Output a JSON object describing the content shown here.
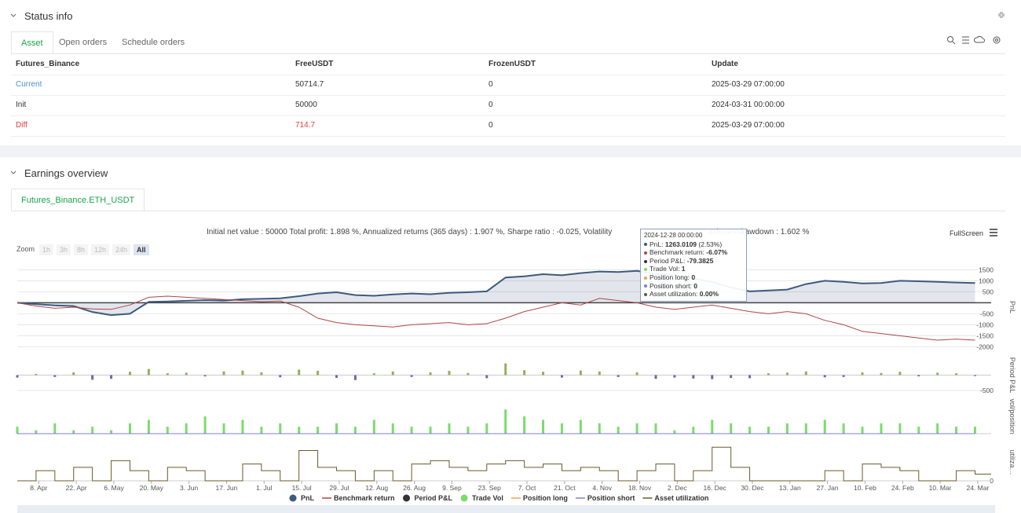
{
  "status": {
    "title": "Status info",
    "tabs": [
      "Asset",
      "Open orders",
      "Schedule orders"
    ],
    "table": {
      "columns": [
        "Futures_Binance",
        "FreeUSDT",
        "FrozenUSDT",
        "Update"
      ],
      "rows": [
        [
          "Current",
          "50714.7",
          "0",
          "2025-03-29 07:00:00"
        ],
        [
          "Init",
          "50000",
          "0",
          "2024-03-31 00:00:00"
        ],
        [
          "Diff",
          "714.7",
          "0",
          "2025-03-29 07:00:00"
        ]
      ]
    }
  },
  "earnings": {
    "title": "Earnings overview",
    "tab": "Futures_Binance.ETH_USDT",
    "summary_left": "Initial net value : 50000 Total profit: 1.898 %, Annualized returns (365 days) : 1.907 %, Sharpe ratio : -0.025, Volatility",
    "summary_right": "aximum drawdown : 1.602 %",
    "fullscreen": "FullScreen",
    "zoom_label": "Zoom",
    "zoom_buttons": [
      "1h",
      "3h",
      "8h",
      "12h",
      "24h",
      "All"
    ],
    "tooltip": {
      "date": "2024-12-28 00:00:00",
      "items": [
        {
          "label": "PnL: ",
          "value": "1263.0109",
          "extra": " (2.53%)"
        },
        {
          "label": "Benchmark return: ",
          "value": "-6.07%"
        },
        {
          "label": "Period P&L: ",
          "value": "-79.3825"
        },
        {
          "label": "Trade Vol: ",
          "value": "1"
        },
        {
          "label": "Position long: ",
          "value": "0"
        },
        {
          "label": "Position short: ",
          "value": "0"
        },
        {
          "label": "Asset utilization: ",
          "value": "0.00%"
        }
      ]
    }
  },
  "chart_data": {
    "type": "line",
    "x": [
      0,
      7,
      14,
      21,
      28,
      35,
      42,
      49,
      56,
      63,
      70,
      77,
      84,
      91,
      98,
      105,
      112,
      119,
      126,
      133,
      140,
      147,
      154,
      161,
      168,
      175,
      182,
      189,
      196,
      203,
      210,
      217,
      224,
      231,
      238,
      245,
      252,
      259,
      266,
      273,
      280,
      287,
      294,
      301,
      308,
      315,
      322,
      329,
      336,
      343,
      350,
      357
    ],
    "xlim": [
      0,
      363
    ],
    "xticks": [
      {
        "value": 8,
        "label": "8. Apr"
      },
      {
        "value": 22,
        "label": "22. Apr"
      },
      {
        "value": 36,
        "label": "6. May"
      },
      {
        "value": 50,
        "label": "20. May"
      },
      {
        "value": 64,
        "label": "3. Jun"
      },
      {
        "value": 78,
        "label": "17. Jun"
      },
      {
        "value": 92,
        "label": "1. Jul"
      },
      {
        "value": 106,
        "label": "15. Jul"
      },
      {
        "value": 120,
        "label": "29. Jul"
      },
      {
        "value": 134,
        "label": "12. Aug"
      },
      {
        "value": 148,
        "label": "26. Aug"
      },
      {
        "value": 162,
        "label": "9. Sep"
      },
      {
        "value": 176,
        "label": "23. Sep"
      },
      {
        "value": 190,
        "label": "7. Oct"
      },
      {
        "value": 204,
        "label": "21. Oct"
      },
      {
        "value": 218,
        "label": "4. Nov"
      },
      {
        "value": 232,
        "label": "18. Nov"
      },
      {
        "value": 246,
        "label": "2. Dec"
      },
      {
        "value": 260,
        "label": "16. Dec"
      },
      {
        "value": 274,
        "label": "30. Dec"
      },
      {
        "value": 288,
        "label": "13. Jan"
      },
      {
        "value": 302,
        "label": "27. Jan"
      },
      {
        "value": 316,
        "label": "10. Feb"
      },
      {
        "value": 330,
        "label": "24. Feb"
      },
      {
        "value": 344,
        "label": "10. Mar"
      },
      {
        "value": 358,
        "label": "24. Mar"
      }
    ],
    "panels": [
      {
        "name": "PnL",
        "ylim": [
          -2200,
          1800
        ],
        "yticks": [
          1500,
          1000,
          500,
          -500,
          -1000,
          -1500,
          -2000
        ]
      },
      {
        "name": "Period P&L",
        "ylim": [
          -700,
          700
        ],
        "yticks": [
          -500
        ]
      },
      {
        "name": "vol/position",
        "ylim": [
          0,
          10
        ]
      },
      {
        "name": "utiliza…",
        "ylim": [
          0,
          1.1
        ],
        "yticks": [
          0
        ]
      }
    ],
    "series": [
      {
        "name": "PnL",
        "type": "area",
        "panel": 0,
        "color": "#3d5a80",
        "values": [
          0,
          -60,
          -120,
          -150,
          -420,
          -560,
          -500,
          40,
          60,
          90,
          120,
          100,
          160,
          180,
          200,
          300,
          420,
          480,
          350,
          320,
          380,
          420,
          390,
          450,
          480,
          520,
          1150,
          1200,
          1300,
          1250,
          1350,
          1420,
          1400,
          1450,
          1300,
          1263,
          1100,
          950,
          700,
          520,
          560,
          600,
          850,
          1000,
          950,
          880,
          900,
          1000,
          980,
          950,
          920,
          900
        ]
      },
      {
        "name": "Benchmark return",
        "type": "line",
        "panel": 0,
        "color": "#b04545",
        "values": [
          0,
          -150,
          -250,
          -200,
          -280,
          -300,
          -100,
          250,
          300,
          250,
          200,
          150,
          100,
          50,
          80,
          -200,
          -700,
          -900,
          -1000,
          -1050,
          -1100,
          -1000,
          -950,
          -900,
          -1000,
          -950,
          -700,
          -400,
          -200,
          0,
          -100,
          200,
          100,
          0,
          -200,
          -300,
          -200,
          -100,
          -250,
          -400,
          -500,
          -400,
          -500,
          -800,
          -1000,
          -1300,
          -1400,
          -1500,
          -1600,
          -1700,
          -1650,
          -1700
        ]
      },
      {
        "name": "Period P&L",
        "type": "bar",
        "panel": 1,
        "color": "#333333",
        "values": [
          -80,
          40,
          -60,
          90,
          -150,
          -120,
          110,
          200,
          60,
          80,
          -40,
          120,
          150,
          90,
          -70,
          180,
          140,
          -90,
          -160,
          60,
          120,
          -60,
          90,
          140,
          70,
          -100,
          380,
          160,
          110,
          -80,
          150,
          120,
          -60,
          90,
          -120,
          -79.3825,
          -110,
          -130,
          -90,
          -100,
          60,
          80,
          120,
          -70,
          -60,
          90,
          70,
          110,
          -40,
          80,
          60,
          -30
        ]
      },
      {
        "name": "Trade Vol",
        "type": "bar",
        "panel": 2,
        "color": "#7bdc6b",
        "values": [
          2,
          1,
          3,
          1,
          2,
          1,
          3,
          4,
          2,
          3,
          5,
          3,
          4,
          2,
          3,
          2,
          2,
          3,
          2,
          4,
          3,
          2,
          2,
          3,
          2,
          3,
          7,
          5,
          4,
          3,
          4,
          3,
          2,
          3,
          3,
          1,
          2,
          4,
          3,
          2,
          2,
          3,
          3,
          4,
          3,
          2,
          3,
          3,
          2,
          3,
          2,
          2
        ]
      },
      {
        "name": "Position long",
        "type": "line",
        "panel": 2,
        "color": "#f2a050",
        "values": [
          0,
          0,
          0,
          0,
          0,
          0,
          0,
          0,
          0,
          0,
          0,
          0,
          0,
          0,
          0,
          0,
          0,
          0,
          0,
          0,
          0,
          0,
          0,
          0,
          0,
          0,
          0,
          0,
          0,
          0,
          0,
          0,
          0,
          0,
          0,
          0,
          0,
          0,
          0,
          0,
          0,
          0,
          0,
          0,
          0,
          0,
          0,
          0,
          0,
          0,
          0,
          0
        ]
      },
      {
        "name": "Position short",
        "type": "line",
        "panel": 2,
        "color": "#7d7ddb",
        "values": [
          0,
          0,
          0,
          0,
          0,
          0,
          0,
          0,
          0,
          0,
          0,
          0,
          0,
          0,
          0,
          0,
          0,
          0,
          0,
          0,
          0,
          0,
          0,
          0,
          0,
          0,
          0,
          0,
          0,
          0,
          0,
          0,
          0,
          0,
          0,
          0,
          0,
          0,
          0,
          0,
          0,
          0,
          0,
          0,
          0,
          0,
          0,
          0,
          0,
          0,
          0,
          0
        ]
      },
      {
        "name": "Asset utilization",
        "type": "step",
        "panel": 3,
        "color": "#6b5a2a",
        "values": [
          0,
          0.3,
          0,
          0.4,
          0,
          0.6,
          0.3,
          0,
          0.4,
          0.3,
          0,
          0,
          0.5,
          0.3,
          0,
          0.9,
          0.4,
          0.3,
          0,
          0.3,
          0,
          0.5,
          0.6,
          0.4,
          0.3,
          0.5,
          0.6,
          0.4,
          0.5,
          0.3,
          0.4,
          0.3,
          0,
          0.3,
          0.5,
          0,
          0.3,
          1,
          0.4,
          0,
          0,
          0,
          0,
          0.3,
          0,
          0.5,
          0.4,
          0.3,
          0,
          0,
          0.3,
          0.2
        ]
      }
    ]
  }
}
